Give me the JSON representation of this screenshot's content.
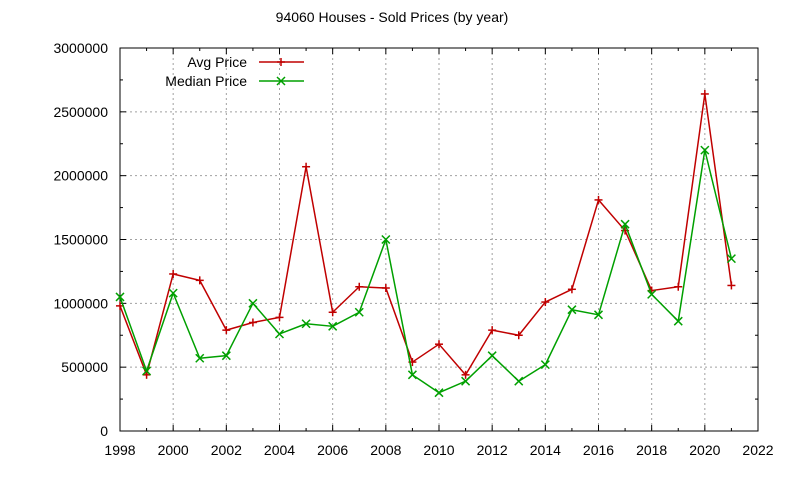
{
  "chart_data": {
    "type": "line",
    "title": "94060 Houses - Sold Prices (by year)",
    "xlabel": "",
    "ylabel": "",
    "xlim": [
      1998,
      2022
    ],
    "ylim": [
      0,
      3000000
    ],
    "xticks": [
      1998,
      2000,
      2002,
      2004,
      2006,
      2008,
      2010,
      2012,
      2014,
      2016,
      2018,
      2020,
      2022
    ],
    "yticks": [
      0,
      500000,
      1000000,
      1500000,
      2000000,
      2500000,
      3000000
    ],
    "x": [
      1998,
      1999,
      2000,
      2001,
      2002,
      2003,
      2004,
      2005,
      2006,
      2007,
      2008,
      2009,
      2010,
      2011,
      2012,
      2013,
      2014,
      2015,
      2016,
      2017,
      2018,
      2019,
      2020,
      2021
    ],
    "grid": true,
    "legend_position": "top-left",
    "series": [
      {
        "name": "Avg Price",
        "color": "#c00000",
        "marker": "plus",
        "values": [
          980000,
          440000,
          1230000,
          1180000,
          790000,
          850000,
          890000,
          2070000,
          930000,
          1130000,
          1120000,
          540000,
          680000,
          440000,
          790000,
          750000,
          1010000,
          1110000,
          1810000,
          1570000,
          1100000,
          1130000,
          2640000,
          1140000
        ]
      },
      {
        "name": "Median Price",
        "color": "#00a000",
        "marker": "cross",
        "values": [
          1050000,
          470000,
          1080000,
          570000,
          590000,
          1000000,
          760000,
          840000,
          820000,
          930000,
          1500000,
          440000,
          300000,
          390000,
          590000,
          390000,
          520000,
          950000,
          910000,
          1620000,
          1070000,
          860000,
          2200000,
          1350000
        ]
      }
    ]
  }
}
